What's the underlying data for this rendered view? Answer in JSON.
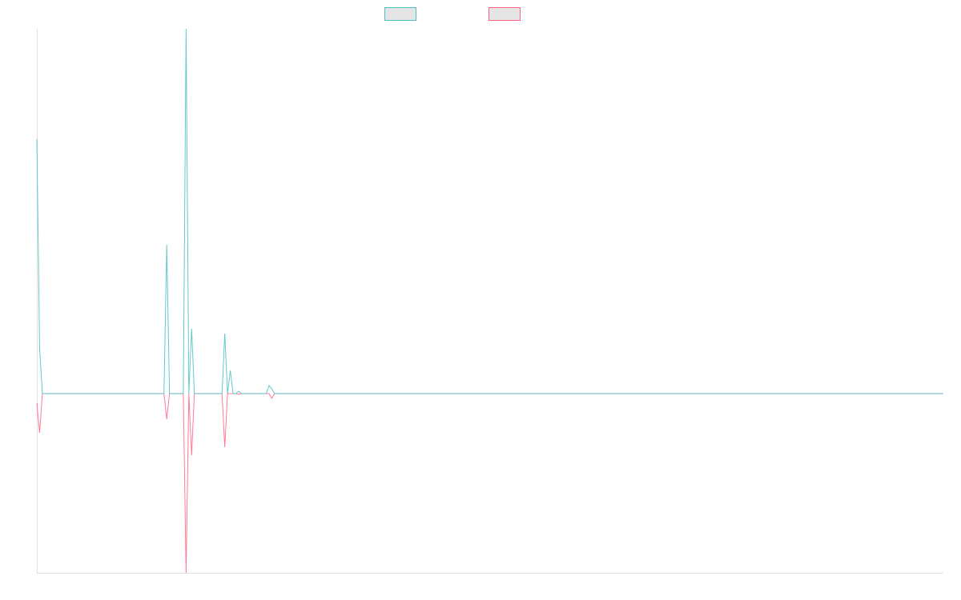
{
  "chart_data": {
    "type": "line",
    "title": "",
    "xlabel": "",
    "ylabel": "",
    "grid": false,
    "legend_position": "top",
    "point_count": 329,
    "ylim": [
      -224,
      456
    ],
    "values_note_default": 0,
    "series": [
      {
        "label": "",
        "color": "#4bc0c0",
        "nonzero_points": [
          [
            0,
            318
          ],
          [
            1,
            57
          ],
          [
            47,
            186
          ],
          [
            54,
            456
          ],
          [
            56,
            81
          ],
          [
            68,
            75
          ],
          [
            70,
            29
          ],
          [
            73,
            3
          ],
          [
            84,
            10
          ],
          [
            85,
            6
          ]
        ]
      },
      {
        "label": "",
        "color": "#ff6384",
        "nonzero_points": [
          [
            0,
            -12
          ],
          [
            1,
            -49
          ],
          [
            47,
            -32
          ],
          [
            54,
            -224
          ],
          [
            56,
            -77
          ],
          [
            68,
            -67
          ],
          [
            73,
            -1
          ],
          [
            85,
            -6
          ]
        ]
      }
    ]
  }
}
